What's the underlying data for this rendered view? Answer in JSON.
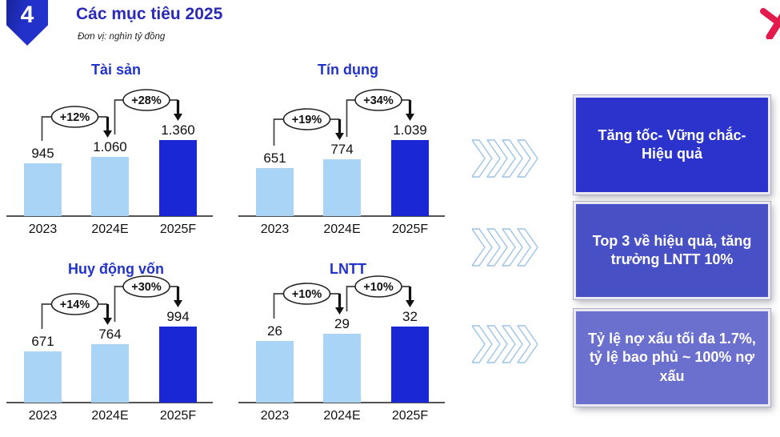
{
  "header": {
    "badge_number": "4",
    "title": "Các mục tiêu 2025",
    "unit_note": "Đơn vị: nghìn tỷ đồng"
  },
  "icons": {
    "logo": "partial-red-brand-mark",
    "chevron": "triple-chevron-right-icon"
  },
  "colors": {
    "bar_light": "#A9D4F6",
    "bar_dark": "#1928D4",
    "chart_title": "#2233CC",
    "header_title": "#2A2AB8",
    "chevron": "#9CC3E8",
    "box1_bg": "#2B33CC",
    "box2_bg": "#4750C5",
    "box3_bg": "#6B70CF",
    "logo_red": "#E31B4C"
  },
  "chart_data": [
    {
      "type": "bar",
      "title": "Tài sản",
      "categories": [
        "2023",
        "2024E",
        "2025F"
      ],
      "values": [
        945,
        1060,
        1360
      ],
      "value_labels": [
        "945",
        "1.060",
        "1.360"
      ],
      "growth_labels": [
        "+12%",
        "+28%"
      ],
      "bar_colors": [
        "light",
        "light",
        "dark"
      ],
      "ylim": [
        0,
        1360
      ]
    },
    {
      "type": "bar",
      "title": "Tín dụng",
      "categories": [
        "2023",
        "2024E",
        "2025F"
      ],
      "values": [
        651,
        774,
        1039
      ],
      "value_labels": [
        "651",
        "774",
        "1.039"
      ],
      "growth_labels": [
        "+19%",
        "+34%"
      ],
      "bar_colors": [
        "light",
        "light",
        "dark"
      ],
      "ylim": [
        0,
        1039
      ]
    },
    {
      "type": "bar",
      "title": "Huy động vốn",
      "categories": [
        "2023",
        "2024E",
        "2025F"
      ],
      "values": [
        671,
        764,
        994
      ],
      "value_labels": [
        "671",
        "764",
        "994"
      ],
      "growth_labels": [
        "+14%",
        "+30%"
      ],
      "bar_colors": [
        "light",
        "light",
        "dark"
      ],
      "ylim": [
        0,
        994
      ]
    },
    {
      "type": "bar",
      "title": "LNTT",
      "categories": [
        "2023",
        "2024E",
        "2025F"
      ],
      "values": [
        26,
        29,
        32
      ],
      "value_labels": [
        "26",
        "29",
        "32"
      ],
      "growth_labels": [
        "+10%",
        "+10%"
      ],
      "bar_colors": [
        "light",
        "light",
        "dark"
      ],
      "ylim": [
        0,
        32
      ]
    }
  ],
  "right_boxes": [
    {
      "label": "Tăng tốc- Vững chắc- Hiệu quả"
    },
    {
      "label": "Top 3 về hiệu quả, tăng trưởng LNTT 10%"
    },
    {
      "label": "Tỷ lệ nợ xấu tối đa 1.7%, tỷ lệ bao phủ ~ 100% nợ xấu"
    }
  ]
}
